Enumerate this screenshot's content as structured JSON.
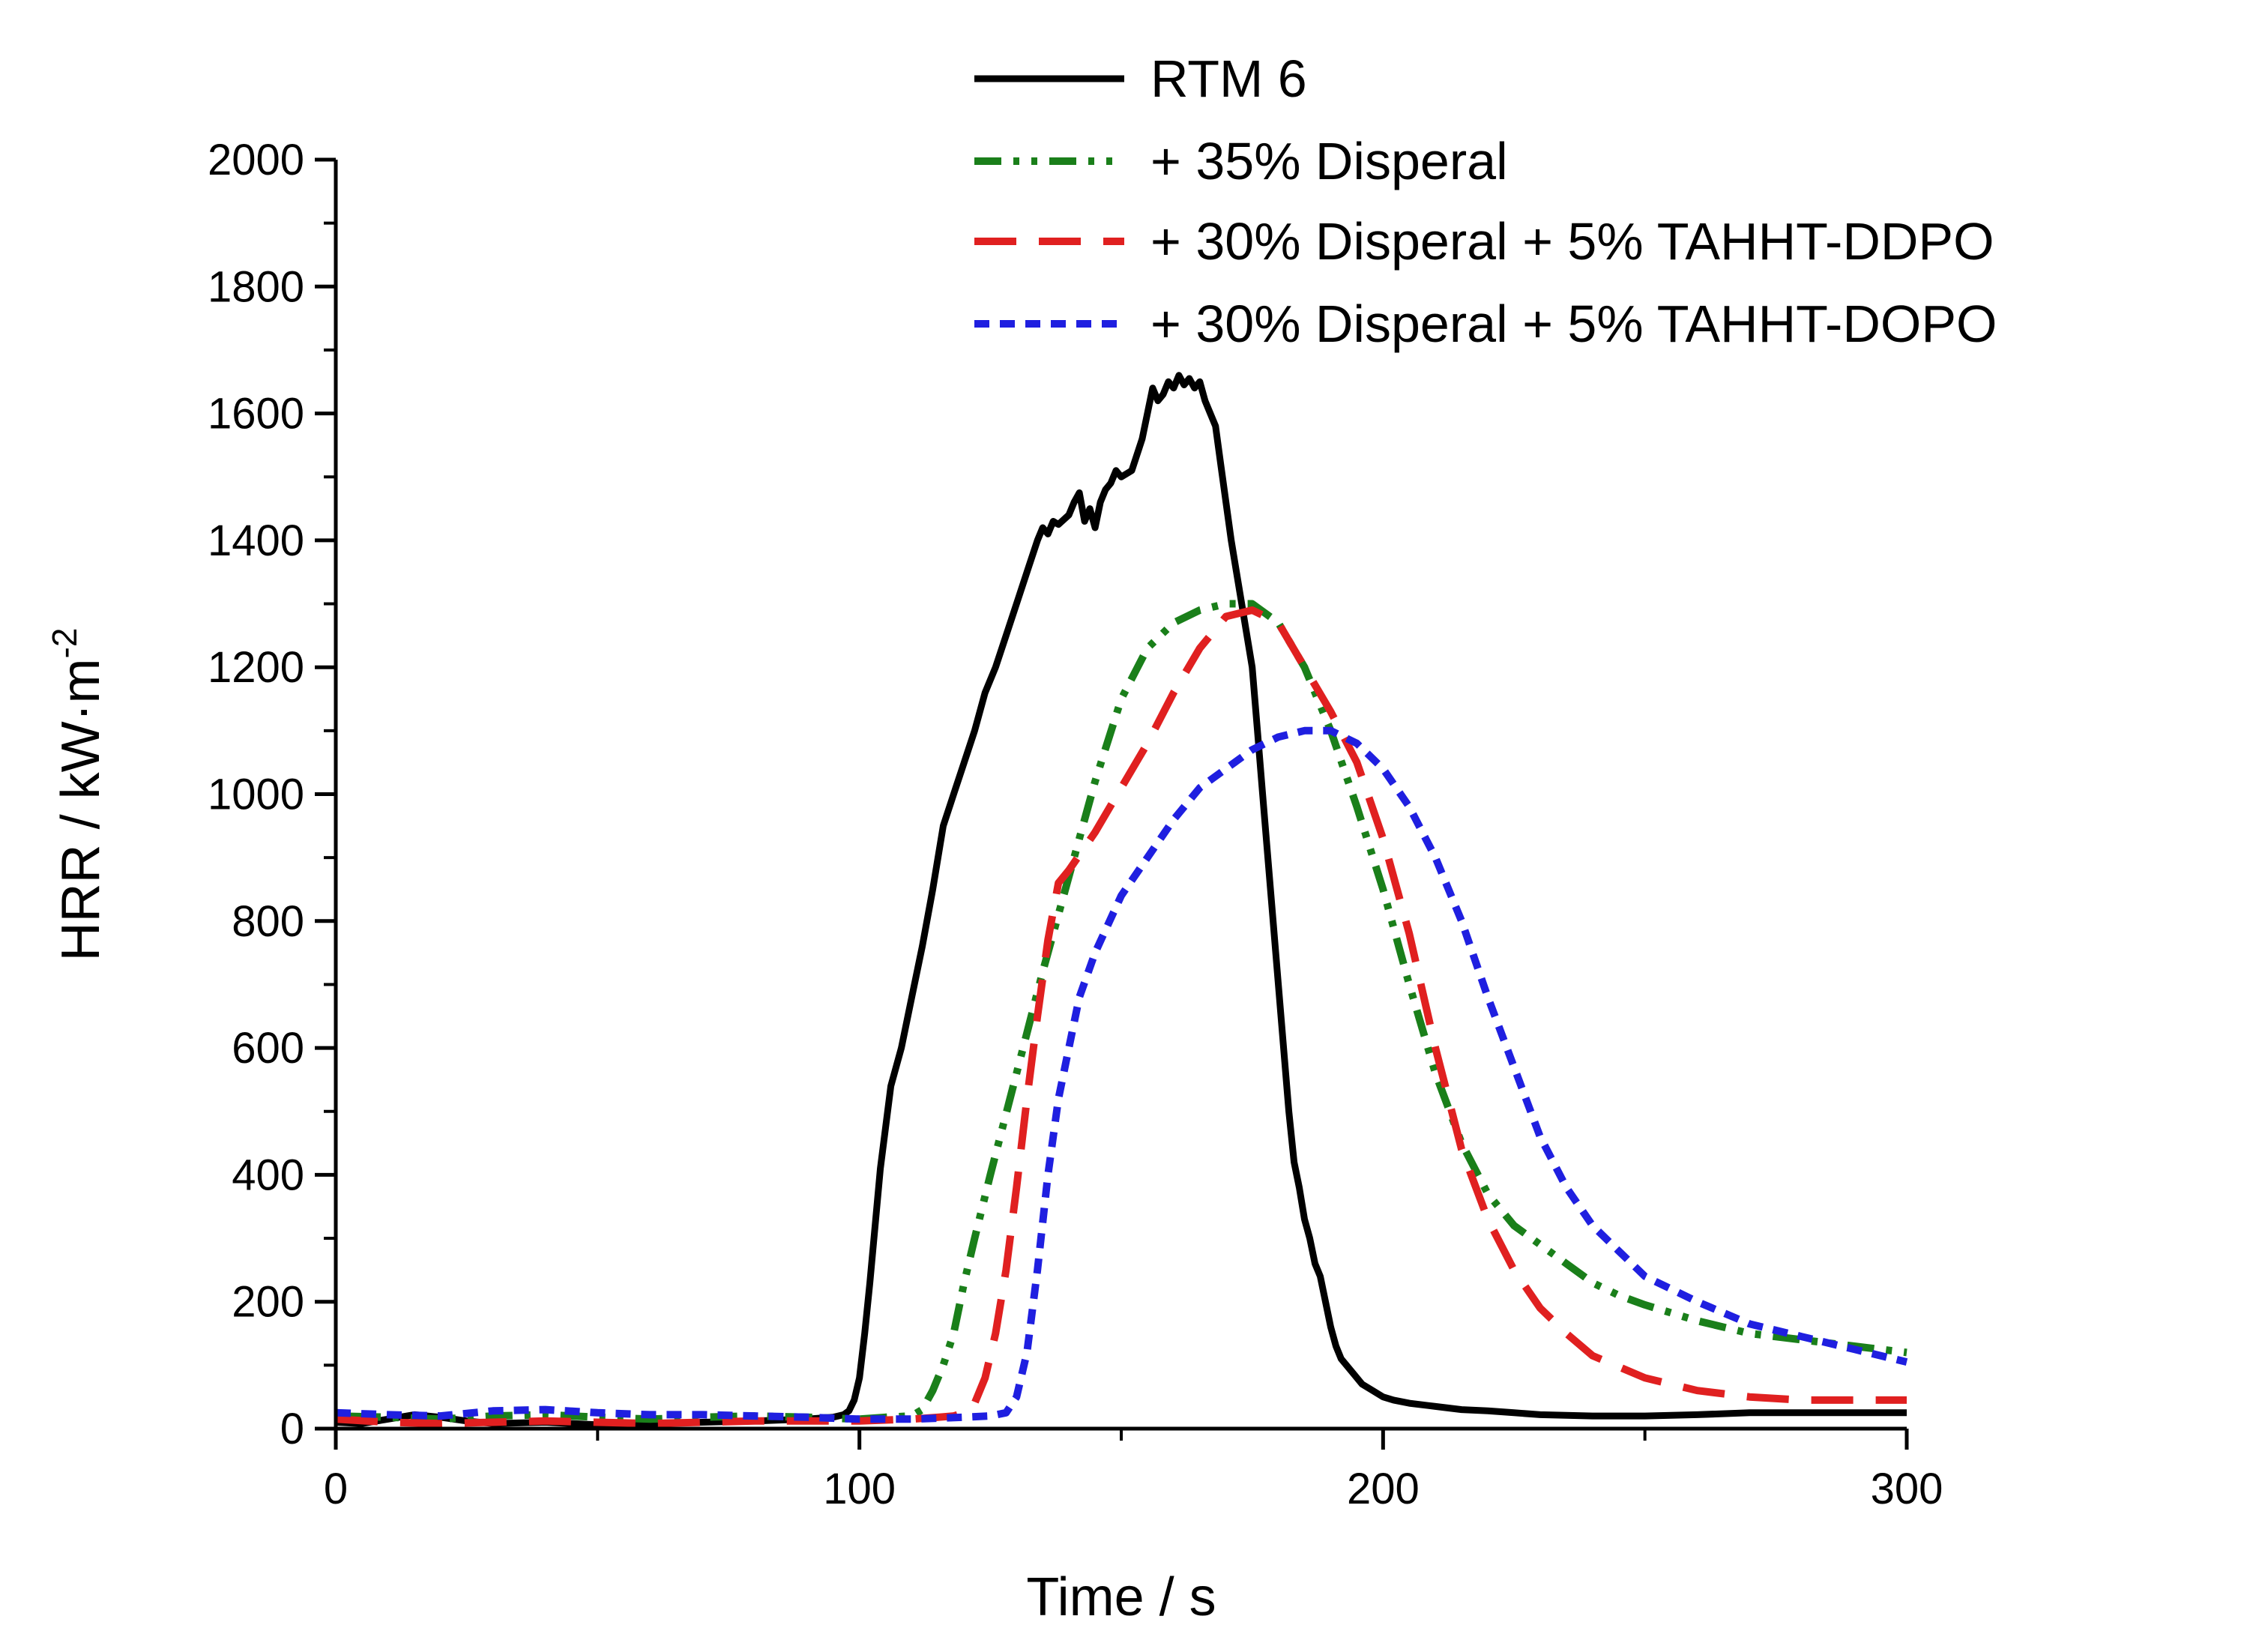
{
  "chart_data": {
    "type": "line",
    "title": "",
    "xlabel": "Time / s",
    "ylabel_main": "HRR / kW·m",
    "ylabel_sup": "-2",
    "xlim": [
      0,
      300
    ],
    "ylim": [
      0,
      2000
    ],
    "x_major_ticks": [
      0,
      100,
      200,
      300
    ],
    "x_tick_labels": [
      "0",
      "100",
      "200",
      "300"
    ],
    "x_minor_ticks": [
      50,
      150,
      250
    ],
    "y_major_ticks": [
      0,
      200,
      400,
      600,
      800,
      1000,
      1200,
      1400,
      1600,
      1800,
      2000
    ],
    "y_tick_labels": [
      "0",
      "200",
      "400",
      "600",
      "800",
      "1000",
      "1200",
      "1400",
      "1600",
      "1800",
      "2000"
    ],
    "y_minor_ticks": [
      100,
      300,
      500,
      700,
      900,
      1100,
      1300,
      1500,
      1700,
      1900
    ],
    "legend_position": "top",
    "series": [
      {
        "name": "RTM 6",
        "color": "#000000",
        "dash": "solid",
        "x": [
          0,
          5,
          10,
          15,
          20,
          25,
          30,
          40,
          50,
          60,
          70,
          80,
          90,
          95,
          97,
          98,
          99,
          100,
          101,
          102,
          103,
          104,
          106,
          108,
          110,
          112,
          114,
          116,
          118,
          120,
          122,
          124,
          126,
          128,
          130,
          132,
          134,
          135,
          136,
          137,
          138,
          140,
          141,
          142,
          143,
          144,
          145,
          146,
          147,
          148,
          149,
          150,
          152,
          154,
          155,
          156,
          157,
          158,
          159,
          160,
          161,
          162,
          163,
          164,
          165,
          166,
          167,
          168,
          169,
          170,
          171,
          172,
          173,
          174,
          175,
          176,
          177,
          178,
          179,
          180,
          181,
          182,
          183,
          184,
          185,
          186,
          187,
          188,
          189,
          190,
          191,
          192,
          194,
          196,
          198,
          200,
          202,
          205,
          210,
          215,
          220,
          225,
          230,
          240,
          250,
          260,
          270,
          280,
          290,
          300
        ],
        "y": [
          10,
          8,
          15,
          22,
          18,
          12,
          8,
          10,
          6,
          8,
          10,
          12,
          15,
          18,
          22,
          28,
          45,
          80,
          150,
          230,
          320,
          410,
          540,
          600,
          680,
          760,
          850,
          950,
          1000,
          1050,
          1100,
          1160,
          1200,
          1250,
          1300,
          1350,
          1400,
          1420,
          1410,
          1430,
          1425,
          1440,
          1460,
          1475,
          1430,
          1450,
          1420,
          1460,
          1480,
          1490,
          1510,
          1500,
          1510,
          1560,
          1600,
          1640,
          1620,
          1630,
          1650,
          1640,
          1660,
          1645,
          1655,
          1640,
          1650,
          1620,
          1600,
          1580,
          1520,
          1460,
          1400,
          1350,
          1300,
          1250,
          1200,
          1100,
          1000,
          900,
          800,
          700,
          600,
          500,
          420,
          380,
          330,
          300,
          260,
          240,
          200,
          160,
          130,
          110,
          90,
          70,
          60,
          50,
          45,
          40,
          35,
          30,
          28,
          25,
          22,
          20,
          20,
          22,
          25,
          25,
          25,
          25
        ]
      },
      {
        "name": "+ 35% Disperal",
        "color": "#1a7f1a",
        "dash": "dash-dot-dot",
        "x": [
          0,
          10,
          20,
          30,
          40,
          50,
          60,
          70,
          80,
          90,
          100,
          105,
          110,
          112,
          114,
          116,
          118,
          120,
          122,
          125,
          130,
          135,
          140,
          145,
          150,
          155,
          160,
          165,
          170,
          175,
          180,
          185,
          190,
          195,
          200,
          205,
          210,
          215,
          220,
          225,
          230,
          235,
          240,
          245,
          250,
          260,
          270,
          280,
          290,
          300
        ],
        "y": [
          20,
          18,
          15,
          20,
          22,
          18,
          15,
          18,
          20,
          18,
          15,
          18,
          20,
          30,
          60,
          100,
          150,
          230,
          300,
          400,
          560,
          720,
          870,
          1020,
          1150,
          1230,
          1270,
          1290,
          1300,
          1300,
          1270,
          1200,
          1100,
          980,
          850,
          700,
          560,
          450,
          370,
          320,
          290,
          260,
          230,
          210,
          195,
          170,
          150,
          140,
          130,
          120
        ]
      },
      {
        "name": "+ 30% Disperal + 5% TAHHT-DDPO",
        "color": "#e02020",
        "dash": "long-dash",
        "x": [
          0,
          10,
          20,
          30,
          40,
          50,
          60,
          70,
          80,
          90,
          100,
          110,
          115,
          118,
          120,
          122,
          124,
          126,
          128,
          130,
          132,
          134,
          136,
          138,
          140,
          145,
          150,
          155,
          160,
          165,
          170,
          175,
          180,
          185,
          190,
          195,
          200,
          205,
          210,
          215,
          220,
          225,
          230,
          235,
          240,
          250,
          260,
          270,
          280,
          290,
          300
        ],
        "y": [
          15,
          10,
          8,
          10,
          12,
          10,
          8,
          10,
          12,
          12,
          12,
          15,
          18,
          20,
          25,
          40,
          80,
          150,
          250,
          380,
          520,
          650,
          770,
          860,
          880,
          940,
          1010,
          1080,
          1160,
          1230,
          1280,
          1290,
          1270,
          1200,
          1130,
          1050,
          930,
          780,
          600,
          440,
          330,
          250,
          190,
          150,
          115,
          80,
          60,
          50,
          45,
          45,
          45
        ]
      },
      {
        "name": "+ 30% Disperal + 5% TAHHT-DOPO",
        "color": "#1f1fe0",
        "dash": "short-dash",
        "x": [
          0,
          10,
          20,
          30,
          40,
          50,
          60,
          70,
          80,
          90,
          100,
          110,
          120,
          125,
          128,
          130,
          132,
          134,
          136,
          138,
          140,
          142,
          145,
          150,
          155,
          160,
          165,
          170,
          175,
          180,
          185,
          190,
          195,
          200,
          205,
          210,
          215,
          220,
          225,
          230,
          235,
          240,
          245,
          250,
          260,
          270,
          280,
          290,
          300
        ],
        "y": [
          25,
          22,
          20,
          28,
          30,
          25,
          22,
          22,
          20,
          18,
          15,
          15,
          18,
          20,
          25,
          50,
          120,
          250,
          400,
          520,
          600,
          680,
          750,
          840,
          900,
          960,
          1010,
          1040,
          1070,
          1090,
          1100,
          1100,
          1080,
          1040,
          980,
          900,
          800,
          680,
          570,
          460,
          380,
          320,
          280,
          240,
          200,
          165,
          145,
          125,
          105
        ]
      }
    ]
  }
}
